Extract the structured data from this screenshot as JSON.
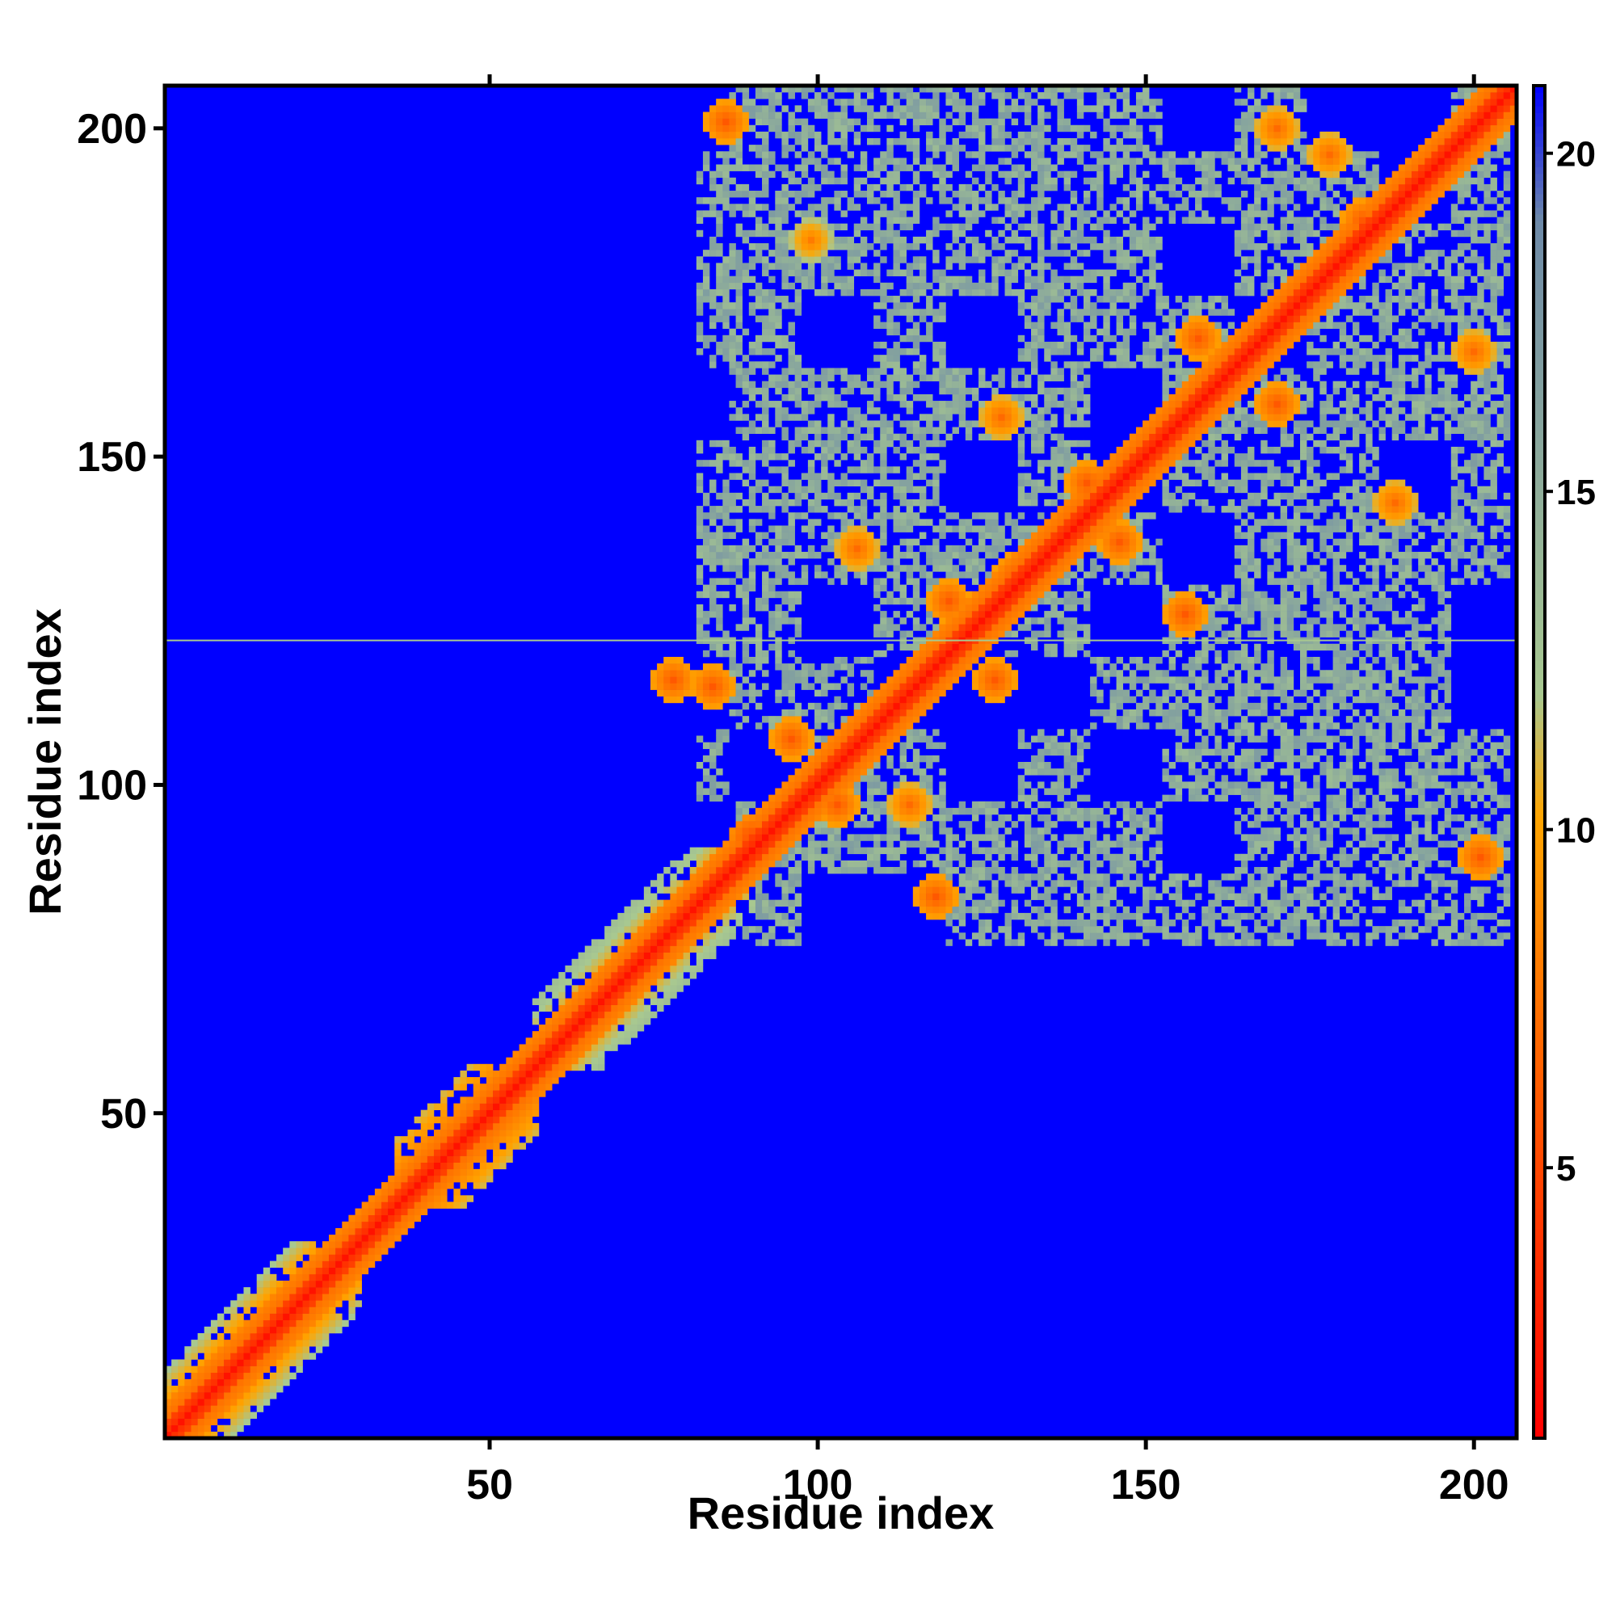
{
  "chart_data": {
    "type": "heatmap",
    "title": "",
    "xlabel": "Residue index",
    "ylabel": "Residue index",
    "xlim": [
      1,
      206
    ],
    "ylim": [
      1,
      206
    ],
    "x_ticks": [
      50,
      100,
      150,
      200
    ],
    "y_ticks": [
      50,
      100,
      150,
      200
    ],
    "colorbar": {
      "range": [
        1,
        21
      ],
      "ticks": [
        5,
        10,
        15,
        20
      ],
      "colors": [
        "#ff0000",
        "#ff7f00",
        "#ffa500",
        "#a8c890",
        "#6e8aa8",
        "#0000ff"
      ],
      "breaks": [
        0,
        0.36,
        0.46,
        0.55,
        0.9,
        1.0
      ]
    },
    "background_value": 21,
    "diagonal_value": 2,
    "artifact_row": 122,
    "description_of_pattern": "",
    "contact_regions": [
      {
        "x": [
          1,
          30
        ],
        "y": [
          1,
          30
        ],
        "level": 12
      },
      {
        "x": [
          36,
          57
        ],
        "y": [
          36,
          57
        ],
        "level": 11
      },
      {
        "x": [
          57,
          90
        ],
        "y": [
          57,
          90
        ],
        "level": 13
      },
      {
        "x": [
          82,
          205
        ],
        "y": [
          76,
          206
        ],
        "level": 14
      }
    ],
    "hotspots": [
      {
        "x": 84,
        "y": 115,
        "value": 6
      },
      {
        "x": 90,
        "y": 92,
        "value": 5
      },
      {
        "x": 96,
        "y": 107,
        "value": 6
      },
      {
        "x": 103,
        "y": 97,
        "value": 6
      },
      {
        "x": 114,
        "y": 97,
        "value": 7
      },
      {
        "x": 118,
        "y": 83,
        "value": 6
      },
      {
        "x": 120,
        "y": 128,
        "value": 6
      },
      {
        "x": 127,
        "y": 116,
        "value": 6
      },
      {
        "x": 130,
        "y": 132,
        "value": 6
      },
      {
        "x": 141,
        "y": 146,
        "value": 6
      },
      {
        "x": 146,
        "y": 137,
        "value": 6
      },
      {
        "x": 156,
        "y": 126,
        "value": 6
      },
      {
        "x": 158,
        "y": 168,
        "value": 6
      },
      {
        "x": 170,
        "y": 158,
        "value": 6
      },
      {
        "x": 172,
        "y": 172,
        "value": 6
      },
      {
        "x": 183,
        "y": 186,
        "value": 6
      },
      {
        "x": 188,
        "y": 143,
        "value": 7
      },
      {
        "x": 201,
        "y": 89,
        "value": 6
      },
      {
        "x": 86,
        "y": 201,
        "value": 6
      },
      {
        "x": 128,
        "y": 156,
        "value": 7
      },
      {
        "x": 170,
        "y": 200,
        "value": 7
      },
      {
        "x": 178,
        "y": 196,
        "value": 7
      },
      {
        "x": 200,
        "y": 166,
        "value": 7
      },
      {
        "x": 99,
        "y": 183,
        "value": 8
      },
      {
        "x": 106,
        "y": 136,
        "value": 7
      },
      {
        "x": 78,
        "y": 116,
        "value": 6
      }
    ]
  }
}
